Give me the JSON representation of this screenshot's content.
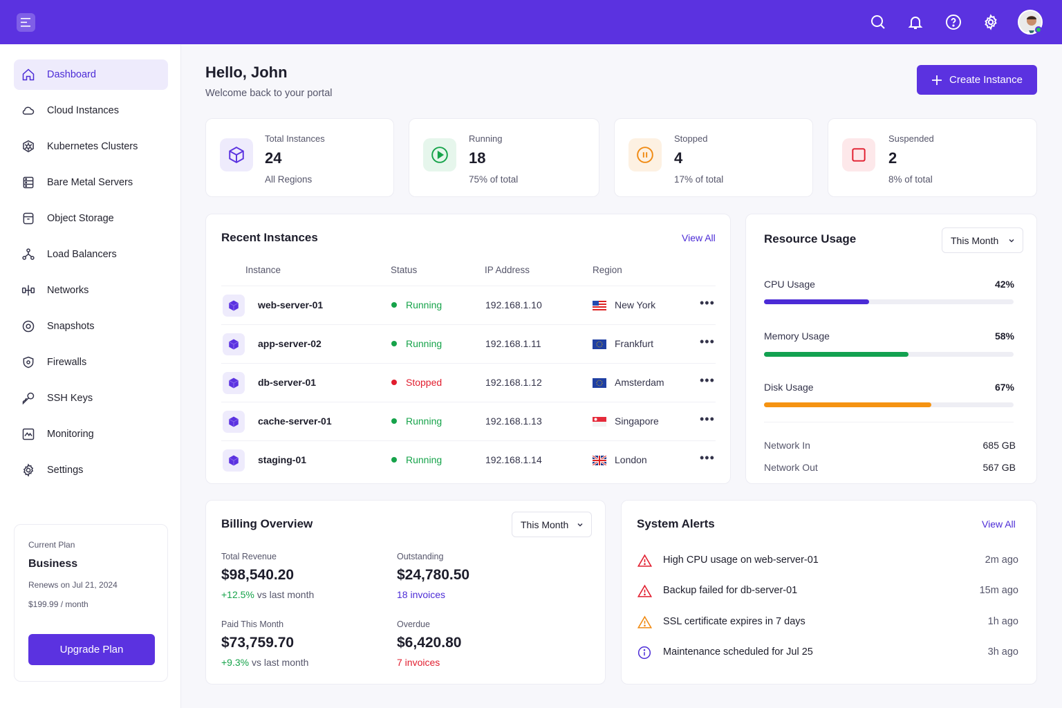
{
  "header": {
    "menu_icon": "hamburger-icon",
    "icons": [
      "search-icon",
      "bell-icon",
      "help-icon",
      "gear-icon"
    ],
    "avatar": "user-avatar"
  },
  "sidebar": {
    "items": [
      {
        "label": "Dashboard",
        "icon": "home-icon",
        "active": true
      },
      {
        "label": "Cloud Instances",
        "icon": "cloud-icon"
      },
      {
        "label": "Kubernetes Clusters",
        "icon": "kubernetes-icon"
      },
      {
        "label": "Bare Metal Servers",
        "icon": "server-icon"
      },
      {
        "label": "Object Storage",
        "icon": "storage-box-icon"
      },
      {
        "label": "Load Balancers",
        "icon": "load-balancer-icon"
      },
      {
        "label": "Networks",
        "icon": "network-icon"
      },
      {
        "label": "Snapshots",
        "icon": "snapshot-icon"
      },
      {
        "label": "Firewalls",
        "icon": "shield-icon"
      },
      {
        "label": "SSH Keys",
        "icon": "key-icon"
      },
      {
        "label": "Monitoring",
        "icon": "monitoring-icon"
      },
      {
        "label": "Settings",
        "icon": "gear-icon"
      }
    ],
    "plan": {
      "label": "Current Plan",
      "name": "Business",
      "renews": "Renews on Jul 21, 2024",
      "price": "$199.99 / month",
      "button": "Upgrade Plan"
    }
  },
  "main": {
    "greeting": "Hello, John",
    "welcome": "Welcome back to your portal",
    "create_button": "Create Instance",
    "stats": [
      {
        "label": "Total Instances",
        "value": "24",
        "sub": "All Regions",
        "icon": "cube-icon",
        "color": "#5b32e0",
        "bg": "#eeebfc"
      },
      {
        "label": "Running",
        "value": "18",
        "sub": "75% of total",
        "icon": "play-icon",
        "color": "#16a34a",
        "bg": "#e6f6ec"
      },
      {
        "label": "Stopped",
        "value": "4",
        "sub": "17% of total",
        "icon": "pause-icon",
        "color": "#f08a12",
        "bg": "#fdf1e2"
      },
      {
        "label": "Suspended",
        "value": "2",
        "sub": "8% of total",
        "icon": "stop-icon",
        "color": "#e11d2e",
        "bg": "#fde8ea"
      }
    ],
    "recent": {
      "title": "Recent Instances",
      "view_all": "View All",
      "columns": [
        "Instance",
        "Status",
        "IP Address",
        "Region"
      ],
      "rows": [
        {
          "name": "web-server-01",
          "status": "Running",
          "ip": "192.168.1.10",
          "region": "New York",
          "flag": "us-flag"
        },
        {
          "name": "app-server-02",
          "status": "Running",
          "ip": "192.168.1.11",
          "region": "Frankfurt",
          "flag": "eu-flag"
        },
        {
          "name": "db-server-01",
          "status": "Stopped",
          "ip": "192.168.1.12",
          "region": "Amsterdam",
          "flag": "eu-flag"
        },
        {
          "name": "cache-server-01",
          "status": "Running",
          "ip": "192.168.1.13",
          "region": "Singapore",
          "flag": "sg-flag"
        },
        {
          "name": "staging-01",
          "status": "Running",
          "ip": "192.168.1.14",
          "region": "London",
          "flag": "uk-flag"
        }
      ],
      "more": "•••",
      "status_colors": {
        "Running": "#16a34a",
        "Stopped": "#e11d2e"
      }
    },
    "resource": {
      "title": "Resource Usage",
      "period": "This Month",
      "usages": [
        {
          "label": "CPU Usage",
          "value": "42%",
          "fraction": 0.42,
          "color": "#4b2bd6"
        },
        {
          "label": "Memory Usage",
          "value": "58%",
          "fraction": 0.58,
          "color": "#12a150"
        },
        {
          "label": "Disk Usage",
          "value": "67%",
          "fraction": 0.67,
          "color": "#f59312"
        }
      ],
      "network_in_label": "Network In",
      "network_in": "685 GB",
      "network_out_label": "Network Out",
      "network_out": "567 GB"
    },
    "billing": {
      "title": "Billing Overview",
      "period": "This Month",
      "total_revenue_label": "Total Revenue",
      "total_revenue": "$98,540.20",
      "total_revenue_change": "+12.5%",
      "total_revenue_suffix": "vs last month",
      "outstanding_label": "Outstanding",
      "outstanding": "$24,780.50",
      "outstanding_invoices": "18 invoices",
      "paid_label": "Paid This Month",
      "paid": "$73,759.70",
      "paid_change": "+9.3%",
      "paid_suffix": "vs last month",
      "overdue_label": "Overdue",
      "overdue": "$6,420.80",
      "overdue_invoices": "7 invoices"
    },
    "alerts": {
      "title": "System Alerts",
      "view_all": "View All",
      "items": [
        {
          "text": "High CPU usage on web-server-01",
          "time": "2m ago",
          "icon": "warning-icon",
          "color": "#e11d2e"
        },
        {
          "text": "Backup failed for db-server-01",
          "time": "15m ago",
          "icon": "warning-icon",
          "color": "#e11d2e"
        },
        {
          "text": "SSL certificate expires in 7 days",
          "time": "1h ago",
          "icon": "warning-icon",
          "color": "#f08a12"
        },
        {
          "text": "Maintenance scheduled for Jul 25",
          "time": "3h ago",
          "icon": "info-icon",
          "color": "#4b2bd6"
        }
      ]
    }
  }
}
